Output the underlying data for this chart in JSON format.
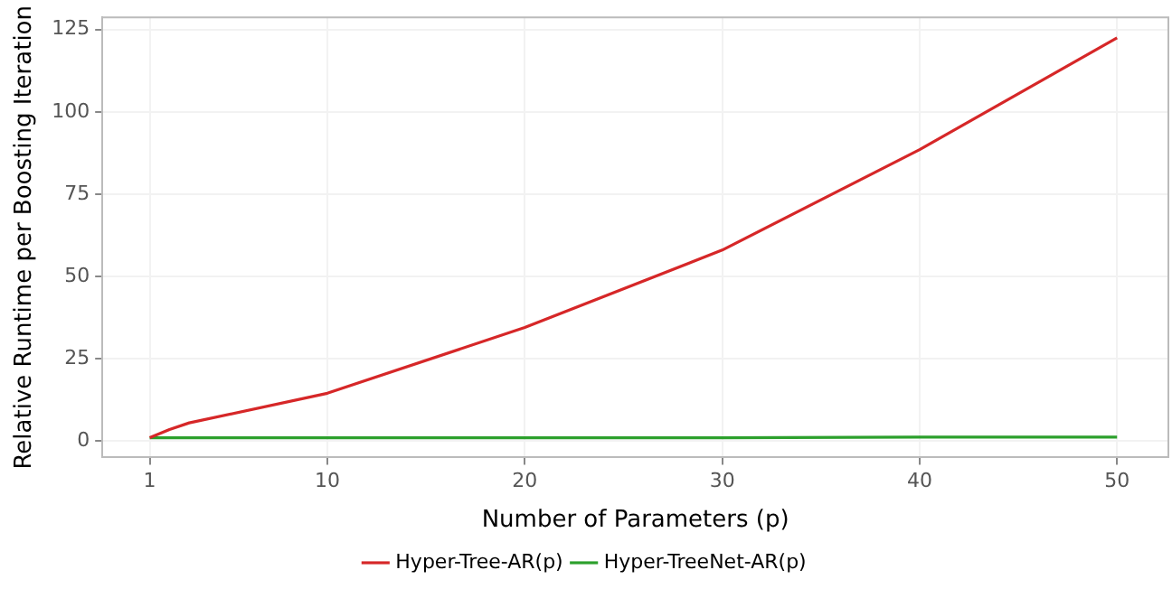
{
  "chart_data": {
    "type": "line",
    "xlabel": "Number of Parameters (p)",
    "ylabel": "Relative Runtime per Boosting Iteration",
    "x": [
      1,
      2,
      3,
      10,
      20,
      30,
      40,
      50
    ],
    "series": [
      {
        "name": "Hyper-Tree-AR(p)",
        "color": "#d62728",
        "values": [
          1,
          3.5,
          5.5,
          14.5,
          34.5,
          58,
          88.5,
          122.5
        ]
      },
      {
        "name": "Hyper-TreeNet-AR(p)",
        "color": "#2ca02c",
        "values": [
          1,
          1,
          1,
          1,
          1,
          1,
          1.2,
          1.2
        ]
      }
    ],
    "xlim": [
      -1.4,
      52.6
    ],
    "xticks": [
      1,
      10,
      20,
      30,
      40,
      50
    ],
    "ylim": [
      -5,
      128.7
    ],
    "yticks": [
      0,
      25,
      50,
      75,
      100,
      125
    ],
    "grid": true,
    "legend": "bottom",
    "marker": "none",
    "line_style": "solid"
  }
}
